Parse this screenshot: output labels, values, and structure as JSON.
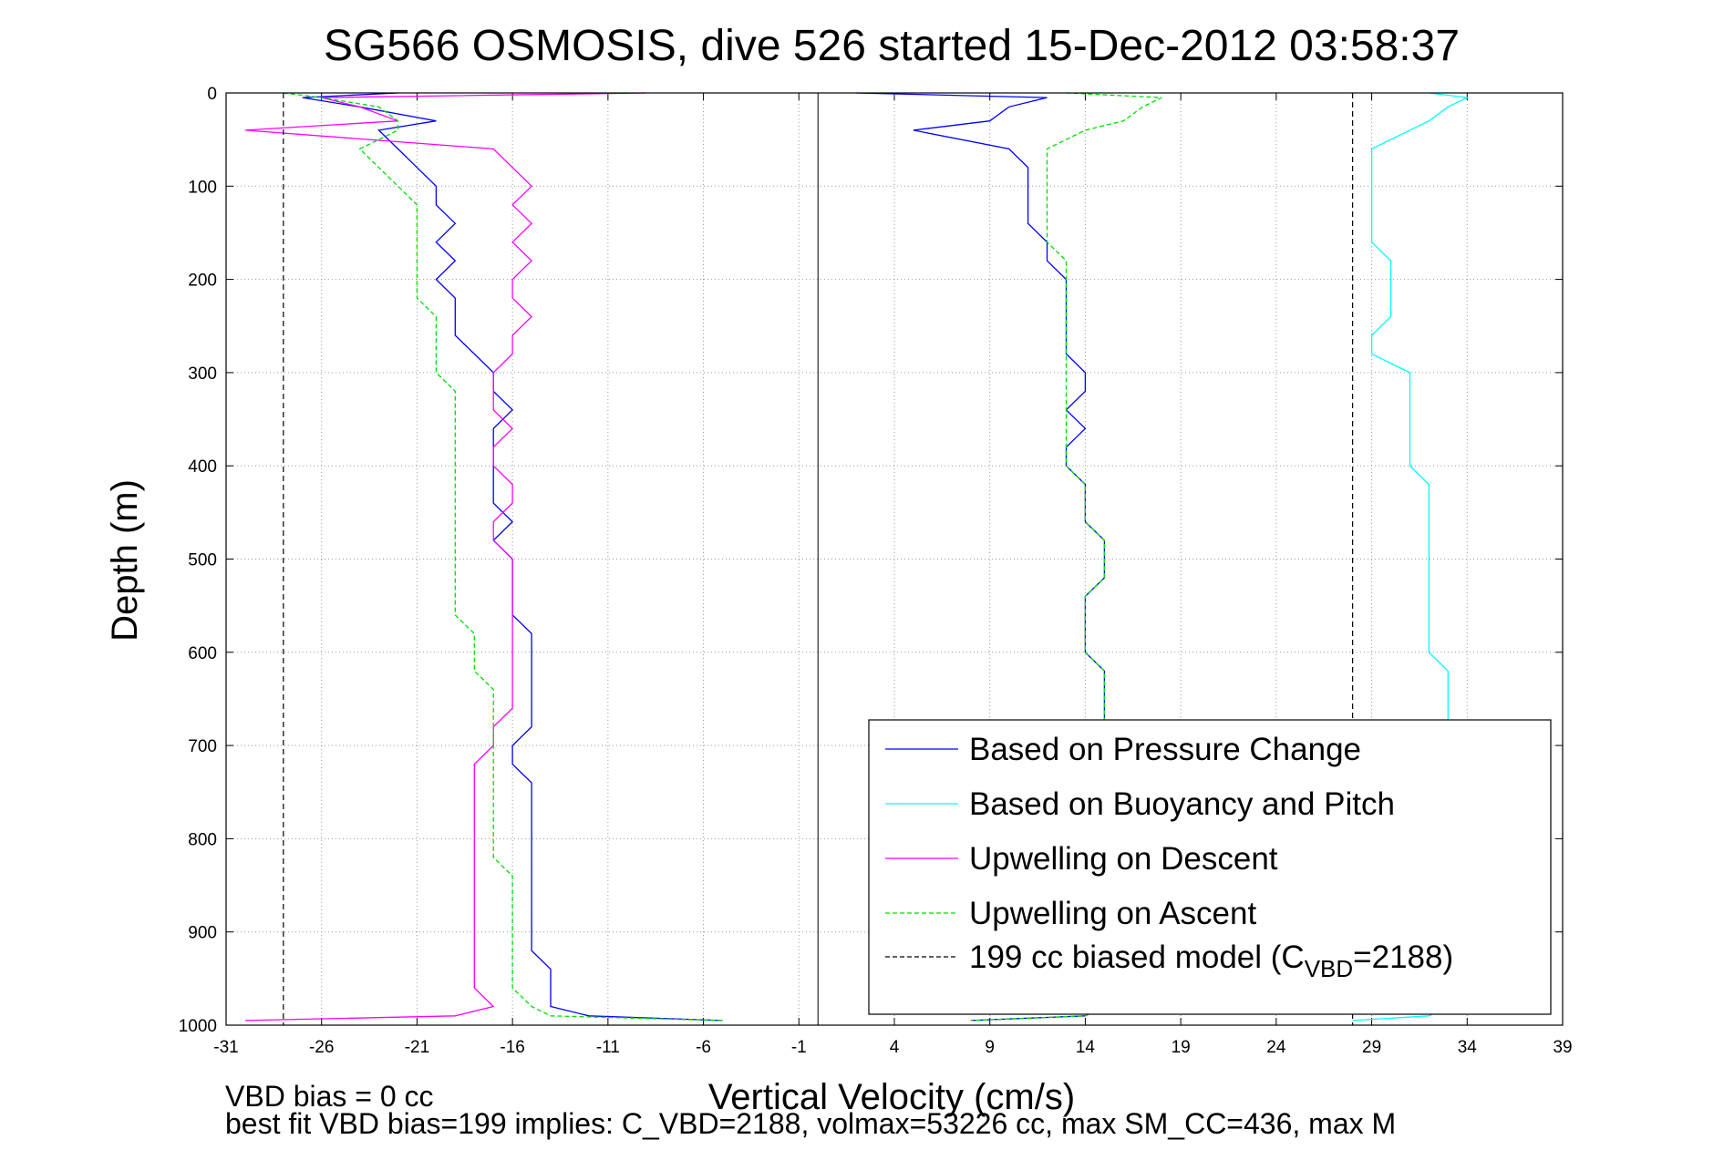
{
  "chart_data": {
    "type": "line",
    "title": "SG566 OSMOSIS, dive 526 started 15-Dec-2012 03:58:37",
    "xlabel": "Vertical Velocity (cm/s)",
    "ylabel": "Depth (m)",
    "xlim": [
      -31,
      39
    ],
    "ylim": [
      1000,
      0
    ],
    "y_reversed": true,
    "grid": true,
    "legend_position": "bottom-right",
    "xticks": [
      "-31",
      "-26",
      "-21",
      "-16",
      "-11",
      "-6",
      "-1",
      "4",
      "9",
      "14",
      "19",
      "24",
      "29",
      "34",
      "39"
    ],
    "yticks": [
      "0",
      "100",
      "200",
      "300",
      "400",
      "500",
      "600",
      "700",
      "800",
      "900",
      "1000"
    ],
    "series": [
      {
        "name": "Based on Pressure Change",
        "color": "#0000ff",
        "dash": "solid",
        "depth": [
          0,
          5,
          15,
          30,
          40,
          60,
          80,
          100,
          120,
          140,
          160,
          180,
          200,
          220,
          240,
          260,
          280,
          300,
          320,
          340,
          360,
          380,
          400,
          420,
          440,
          460,
          480,
          500,
          520,
          540,
          560,
          580,
          600,
          620,
          640,
          660,
          680,
          700,
          720,
          740,
          760,
          780,
          800,
          820,
          840,
          860,
          880,
          900,
          920,
          940,
          960,
          980,
          990,
          995
        ],
        "descent": [
          -22,
          -27,
          -24,
          -20,
          -23,
          -22,
          -21,
          -20,
          -20,
          -19,
          -20,
          -19,
          -20,
          -19,
          -19,
          -19,
          -18,
          -17,
          -17,
          -16,
          -17,
          -17,
          -17,
          -17,
          -17,
          -16,
          -17,
          -16,
          -16,
          -16,
          -16,
          -15,
          -15,
          -15,
          -15,
          -15,
          -15,
          -16,
          -16,
          -15,
          -15,
          -15,
          -15,
          -15,
          -15,
          -15,
          -15,
          -15,
          -15,
          -14,
          -14,
          -14,
          -12,
          -5
        ],
        "ascent": [
          2,
          12,
          10,
          9,
          5,
          10,
          11,
          11,
          11,
          11,
          12,
          12,
          13,
          13,
          13,
          13,
          13,
          14,
          14,
          13,
          14,
          13,
          13,
          14,
          14,
          14,
          15,
          15,
          15,
          14,
          14,
          14,
          14,
          15,
          15,
          15,
          15,
          15,
          15,
          15,
          15,
          15,
          15,
          15,
          15,
          15,
          15,
          15,
          15,
          15,
          15,
          15,
          14,
          8
        ]
      },
      {
        "name": "Based on Buoyancy and Pitch",
        "color": "#00ffff",
        "dash": "solid",
        "depth": [
          0,
          5,
          15,
          30,
          40,
          60,
          80,
          100,
          120,
          140,
          160,
          180,
          200,
          220,
          240,
          260,
          280,
          300,
          320,
          340,
          360,
          380,
          400,
          420,
          440,
          460,
          480,
          500,
          520,
          540,
          560,
          580,
          600,
          620,
          640,
          660,
          680,
          700,
          720,
          740,
          760,
          780,
          800,
          820,
          840,
          860,
          880,
          900,
          920,
          940,
          960,
          980,
          990,
          995
        ],
        "values": [
          32,
          34,
          33,
          32,
          31,
          29,
          29,
          29,
          29,
          29,
          29,
          30,
          30,
          30,
          30,
          29,
          29,
          31,
          31,
          31,
          31,
          31,
          31,
          32,
          32,
          32,
          32,
          32,
          32,
          32,
          32,
          32,
          32,
          33,
          33,
          33,
          33,
          33,
          33,
          33,
          33,
          33,
          33,
          33,
          33,
          33,
          33,
          33,
          33,
          33,
          33,
          33,
          32,
          28
        ]
      },
      {
        "name": "Upwelling on Descent",
        "color": "#ff00ff",
        "dash": "solid",
        "depth": [
          0,
          5,
          15,
          30,
          40,
          60,
          80,
          100,
          120,
          140,
          160,
          180,
          200,
          220,
          240,
          260,
          280,
          300,
          320,
          340,
          360,
          380,
          400,
          420,
          440,
          460,
          480,
          500,
          520,
          540,
          560,
          580,
          600,
          620,
          640,
          660,
          680,
          700,
          720,
          740,
          760,
          780,
          800,
          820,
          840,
          860,
          880,
          900,
          920,
          940,
          960,
          980,
          990,
          995
        ],
        "values": [
          -9,
          -26,
          -24,
          -22,
          -30,
          -17,
          -16,
          -15,
          -16,
          -15,
          -16,
          -15,
          -16,
          -16,
          -15,
          -16,
          -16,
          -17,
          -17,
          -17,
          -16,
          -17,
          -17,
          -16,
          -16,
          -17,
          -17,
          -16,
          -16,
          -16,
          -16,
          -16,
          -16,
          -16,
          -16,
          -16,
          -17,
          -17,
          -18,
          -18,
          -18,
          -18,
          -18,
          -18,
          -18,
          -18,
          -18,
          -18,
          -18,
          -18,
          -18,
          -17,
          -19,
          -30
        ]
      },
      {
        "name": "Upwelling on Ascent",
        "color": "#00dd00",
        "dash": "dashed",
        "depth": [
          0,
          5,
          15,
          30,
          40,
          60,
          80,
          100,
          120,
          140,
          160,
          180,
          200,
          220,
          240,
          260,
          280,
          300,
          320,
          340,
          360,
          380,
          400,
          420,
          440,
          460,
          480,
          500,
          520,
          540,
          560,
          580,
          600,
          620,
          640,
          660,
          680,
          700,
          720,
          740,
          760,
          780,
          800,
          820,
          840,
          860,
          880,
          900,
          920,
          940,
          960,
          980,
          990,
          995
        ],
        "descent": [
          -28,
          -26,
          -23,
          -22,
          -22,
          -24,
          -23,
          -22,
          -21,
          -21,
          -21,
          -21,
          -21,
          -21,
          -20,
          -20,
          -20,
          -20,
          -19,
          -19,
          -19,
          -19,
          -19,
          -19,
          -19,
          -19,
          -19,
          -19,
          -19,
          -19,
          -19,
          -18,
          -18,
          -18,
          -17,
          -17,
          -17,
          -17,
          -17,
          -17,
          -17,
          -17,
          -17,
          -17,
          -16,
          -16,
          -16,
          -16,
          -16,
          -16,
          -16,
          -15,
          -14,
          -5
        ],
        "ascent": [
          13,
          18,
          17,
          16,
          14,
          12,
          12,
          12,
          12,
          12,
          12,
          13,
          13,
          13,
          13,
          13,
          13,
          13,
          13,
          13,
          13,
          13,
          13,
          14,
          14,
          14,
          15,
          15,
          15,
          14,
          14,
          14,
          14,
          15,
          15,
          15,
          15,
          15,
          15,
          15,
          15,
          15,
          15,
          15,
          15,
          15,
          15,
          15,
          15,
          15,
          15,
          15,
          14,
          8
        ]
      },
      {
        "name": "199 cc biased model (CVBD=2188)",
        "legend_main": "199 cc biased model (C",
        "legend_sub": "VBD",
        "legend_tail": "=2188)",
        "color": "#000000",
        "dash": "dashed",
        "x_constant": [
          -28,
          28
        ]
      }
    ]
  },
  "footer": {
    "vbd_bias": "VBD bias = 0 cc",
    "best_fit": "best fit VBD bias=199 implies: C_VBD=2188, volmax=53226 cc, max SM_CC=436, max M"
  }
}
